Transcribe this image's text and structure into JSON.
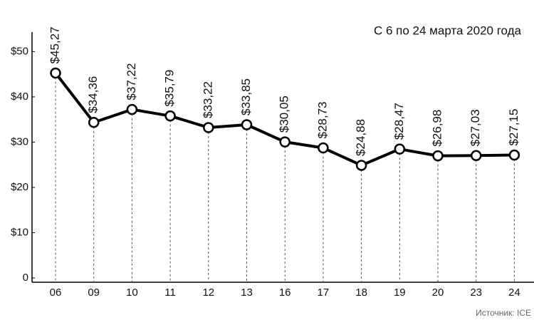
{
  "chart_data": {
    "type": "line",
    "subtitle": "С 6 по 24 марта 2020 года",
    "source": "Источник: ICE",
    "categories": [
      "06",
      "09",
      "10",
      "11",
      "12",
      "13",
      "16",
      "17",
      "18",
      "19",
      "20",
      "23",
      "24"
    ],
    "series": [
      {
        "color": "#000000",
        "values": [
          45.27,
          34.36,
          37.22,
          35.79,
          33.22,
          33.85,
          30.05,
          28.73,
          24.88,
          28.47,
          26.98,
          27.03,
          27.15
        ],
        "value_labels": [
          "$45,27",
          "$34,36",
          "$37,22",
          "$35,79",
          "$33,22",
          "$33,85",
          "$30,05",
          "$28,73",
          "$24,88",
          "$28,47",
          "$26,98",
          "$27,03",
          "$27,15"
        ]
      }
    ],
    "ylim": [
      0,
      54
    ],
    "yticks": [
      0,
      {
        "value": 10,
        "label": "$10"
      },
      {
        "value": 20,
        "label": "$20"
      },
      {
        "value": 30,
        "label": "$30"
      },
      {
        "value": 40,
        "label": "$40"
      },
      {
        "value": 50,
        "label": "$50"
      }
    ]
  }
}
